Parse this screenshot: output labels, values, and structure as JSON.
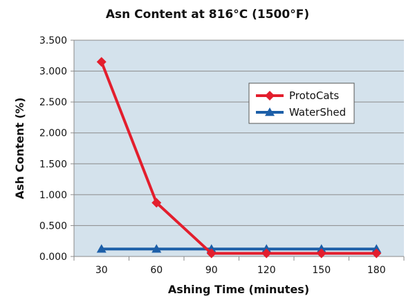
{
  "chart_data": {
    "type": "line",
    "title": "Asn Content at 816°C (1500°F)",
    "xlabel": "Ashing Time (minutes)",
    "ylabel": "Ash Content (%)",
    "categories": [
      "30",
      "60",
      "90",
      "120",
      "150",
      "180"
    ],
    "ylim": [
      0,
      3.5
    ],
    "y_ticks": [
      "0.000",
      "0.500",
      "1.000",
      "1.500",
      "2.000",
      "2.500",
      "3.000",
      "3.500"
    ],
    "grid": true,
    "legend_position": "center-right",
    "plot_background": "#d4e2ec",
    "series": [
      {
        "name": "ProtoCats",
        "color": "#e31e2d",
        "marker": "diamond",
        "values": [
          3.15,
          0.87,
          0.05,
          0.05,
          0.05,
          0.05
        ]
      },
      {
        "name": "WaterShed",
        "color": "#1d5fa8",
        "marker": "triangle",
        "values": [
          0.12,
          0.12,
          0.12,
          0.12,
          0.12,
          0.12
        ]
      }
    ]
  }
}
